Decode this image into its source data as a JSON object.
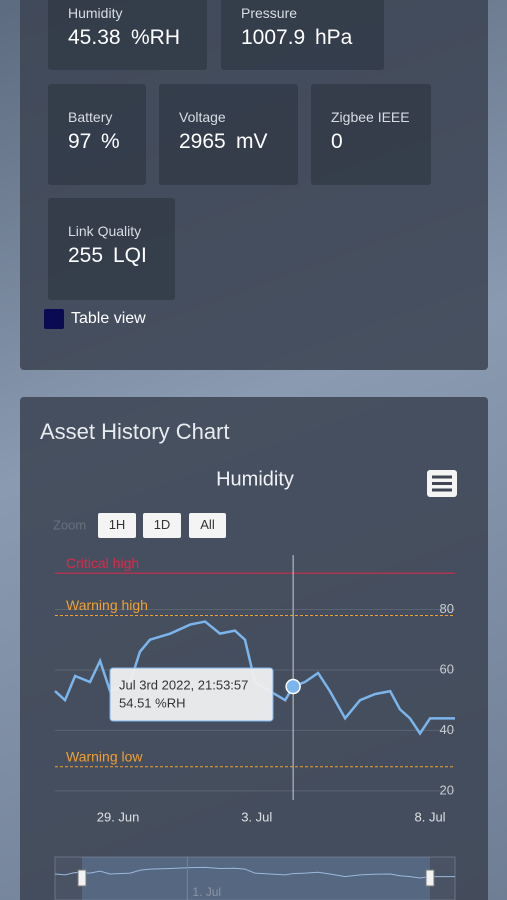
{
  "tiles": [
    {
      "label": "Humidity",
      "value": "45.38",
      "unit": "%RH"
    },
    {
      "label": "Pressure",
      "value": "1007.9",
      "unit": "hPa"
    },
    {
      "label": "Battery",
      "value": "97",
      "unit": "%"
    },
    {
      "label": "Voltage",
      "value": "2965",
      "unit": "mV"
    },
    {
      "label": "Zigbee IEEE",
      "value": "0",
      "unit": ""
    },
    {
      "label": "Link Quality",
      "value": "255",
      "unit": "LQI"
    }
  ],
  "table_view": "Table view",
  "card_title": "Asset History Chart",
  "chart_data": {
    "type": "line",
    "title": "Humidity",
    "zoom": {
      "label": "Zoom",
      "buttons": [
        "1H",
        "1D",
        "All"
      ]
    },
    "color": "#7cb5ec",
    "x": [
      -1.82,
      -1.53,
      -1.24,
      -0.81,
      -0.52,
      -0.23,
      0.35,
      0.63,
      0.92,
      1.5,
      2.08,
      2.51,
      2.94,
      3.37,
      3.66,
      3.95,
      4.38,
      4.82,
      5.05,
      5.39,
      5.77,
      6.11,
      6.55,
      6.98,
      7.41,
      7.85,
      8.13,
      8.42,
      8.71,
      9.0,
      9.43,
      9.72
    ],
    "values": [
      53,
      50,
      58,
      56,
      63,
      53,
      56,
      66,
      70,
      72,
      75,
      76,
      72,
      73,
      70,
      56,
      53,
      50,
      54.51,
      56,
      59,
      53,
      44,
      50,
      52,
      53,
      47,
      44,
      39,
      44,
      44,
      44
    ],
    "xlim": [
      -1.82,
      9.72
    ],
    "xticks": [
      {
        "value": 0,
        "label": "29. Jun"
      },
      {
        "value": 4,
        "label": "3. Jul"
      },
      {
        "value": 9,
        "label": "8. Jul"
      }
    ],
    "ylim": [
      17,
      98
    ],
    "yticks": [
      20,
      40,
      60,
      80
    ],
    "grid": true,
    "plot_lines": [
      {
        "label": "Critical high",
        "value": 92,
        "color": "#e0284a",
        "dashed": false
      },
      {
        "label": "Warning high",
        "value": 78,
        "color": "#f0a030",
        "dashed": true
      },
      {
        "label": "Warning low",
        "value": 28,
        "color": "#f0a030",
        "dashed": true
      }
    ],
    "tooltip": {
      "title": "Jul 3rd 2022, 21:53:57",
      "text": "54.51 %RH",
      "x": 5.05,
      "value": 54.51
    },
    "navigator": {
      "xticks": [
        {
          "value": 2,
          "label": "1. Jul"
        }
      ]
    }
  }
}
